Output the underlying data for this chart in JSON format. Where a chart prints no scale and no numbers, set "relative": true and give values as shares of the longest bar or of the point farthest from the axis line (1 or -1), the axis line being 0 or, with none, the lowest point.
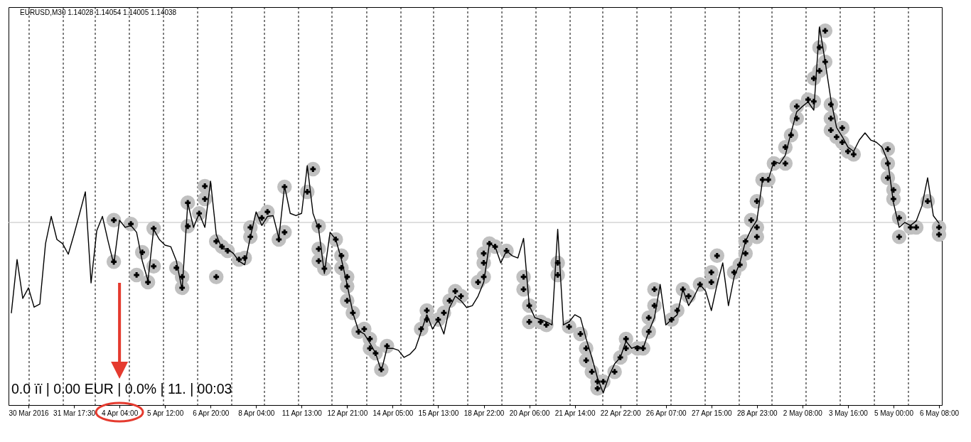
{
  "chart_data": {
    "type": "line",
    "relative": true,
    "tick_labels": "x",
    "title": "EURUSD,M30 1.14028 1.14054 1.14005 1.14038",
    "annotations": [
      "0.0 ïï | 0.00 EUR | 0.0% | 11. | 00:03"
    ],
    "categories": [
      null,
      null,
      null,
      "30 Mar 2016",
      null,
      null,
      null,
      null,
      null,
      null,
      null,
      "31 Mar 17:30",
      null,
      null,
      null,
      null,
      null,
      null,
      null,
      "4 Apr 04:00",
      null,
      null,
      null,
      null,
      null,
      null,
      null,
      "5 Apr 12:00",
      null,
      null,
      null,
      null,
      null,
      null,
      null,
      "6 Apr 20:00",
      null,
      null,
      null,
      null,
      null,
      null,
      null,
      "8 Apr 04:00",
      null,
      null,
      null,
      null,
      null,
      null,
      null,
      "11 Apr 13:00",
      null,
      null,
      null,
      null,
      null,
      null,
      null,
      "12 Apr 21:00",
      null,
      null,
      null,
      null,
      null,
      null,
      null,
      "14 Apr 05:00",
      null,
      null,
      null,
      null,
      null,
      null,
      null,
      "15 Apr 13:00",
      null,
      null,
      null,
      null,
      null,
      null,
      null,
      "18 Apr 22:00",
      null,
      null,
      null,
      null,
      null,
      null,
      null,
      "20 Apr 06:00",
      null,
      null,
      null,
      null,
      null,
      null,
      null,
      "21 Apr 14:00",
      null,
      null,
      null,
      null,
      null,
      null,
      null,
      "22 Apr 22:00",
      null,
      null,
      null,
      null,
      null,
      null,
      null,
      "26 Apr 07:00",
      null,
      null,
      null,
      null,
      null,
      null,
      null,
      "27 Apr 15:00",
      null,
      null,
      null,
      null,
      null,
      null,
      null,
      "28 Apr 23:00",
      null,
      null,
      null,
      null,
      null,
      null,
      null,
      "2 May 08:00",
      null,
      null,
      null,
      null,
      null,
      null,
      null,
      "3 May 16:00",
      null,
      null,
      null,
      null,
      null,
      null,
      null,
      "5 May 00:00",
      null,
      null,
      null,
      null,
      null,
      null,
      null,
      "6 May 08:00"
    ],
    "ref_lines": [
      {
        "axis": "y",
        "value": 0.483,
        "color": "#c0c0c0"
      }
    ],
    "series": [
      {
        "type": "scatter",
        "marker": "circle",
        "color": "#c0c0c0",
        "values": [
          null,
          null,
          null,
          null,
          null,
          null,
          null,
          null,
          null,
          null,
          null,
          null,
          null,
          null,
          null,
          null,
          null,
          null,
          0.489,
          null,
          null,
          0.479,
          0.344,
          0.404,
          0.325,
          0.467,
          null,
          null,
          null,
          0.363,
          0.31,
          0.473,
          null,
          0.507,
          0.579,
          null,
          0.433,
          0.419,
          0.408,
          null,
          0.385,
          0.389,
          0.445,
          null,
          0.495,
          0.511,
          null,
          0.438,
          0.457,
          null,
          null,
          null,
          0.564,
          0.624,
          0.473,
          0.361,
          null,
          0.438,
          0.395,
          0.339,
          0.244,
          0.194,
          0.201,
          0.175,
          0.137,
          0.094,
          0.156,
          null,
          null,
          null,
          null,
          null,
          0.201,
          0.25,
          null,
          0.226,
          0.244,
          0.276,
          0.301,
          0.288,
          null,
          null,
          0.325,
          0.339,
          0.427,
          0.419,
          null,
          0.408,
          null,
          null,
          0.339,
          0.263,
          null,
          0.22,
          0.212,
          null,
          0.376,
          null,
          0.207,
          null,
          0.188,
          0.15,
          0.088,
          0.062,
          0.062,
          null,
          0.088,
          0.126,
          0.15,
          null,
          0.15,
          0.15,
          0.231,
          0.306,
          null,
          null,
          0.226,
          0.25,
          0.306,
          0.288,
          null,
          0.319,
          null,
          0.325,
          0.395,
          null,
          null,
          0.351,
          0.371,
          0.401,
          0.489,
          0.445,
          0.596,
          0.596,
          0.639,
          null,
          0.639,
          0.714,
          0.758,
          null,
          0.808,
          0.803,
          0.884,
          0.99,
          0.795,
          0.709,
          0.695,
          0.671,
          0.663,
          null,
          null,
          null,
          null,
          null,
          0.677,
          0.569,
          0.495,
          null,
          0.47,
          0.47,
          null,
          0.539,
          null,
          0.47
        ]
      },
      {
        "type": "scatter",
        "marker": "circle",
        "color": "#c0c0c0",
        "values": [
          null,
          null,
          null,
          null,
          null,
          null,
          null,
          null,
          null,
          null,
          null,
          null,
          null,
          null,
          null,
          null,
          null,
          null,
          0.379,
          null,
          null,
          null,
          null,
          null,
          null,
          0.367,
          null,
          null,
          null,
          null,
          0.339,
          0.535,
          null,
          null,
          0.545,
          null,
          0.339,
          null,
          null,
          null,
          null,
          null,
          0.47,
          null,
          null,
          null,
          null,
          null,
          0.577,
          null,
          null,
          null,
          null,
          null,
          0.413,
          null,
          null,
          null,
          0.363,
          0.314,
          null,
          null,
          null,
          0.15,
          null,
          null,
          null,
          null,
          null,
          null,
          null,
          null,
          null,
          0.226,
          null,
          null,
          null,
          null,
          null,
          null,
          null,
          null,
          null,
          0.376,
          null,
          null,
          null,
          null,
          null,
          null,
          0.306,
          0.22,
          null,
          null,
          null,
          null,
          0.344,
          null,
          null,
          null,
          null,
          0.118,
          null,
          0.044,
          null,
          null,
          null,
          null,
          0.175,
          null,
          null,
          null,
          0.194,
          0.263,
          null,
          null,
          null,
          null,
          null,
          null,
          null,
          null,
          null,
          0.351,
          null,
          null,
          null,
          null,
          null,
          0.433,
          null,
          0.47,
          null,
          null,
          null,
          null,
          0.682,
          null,
          0.79,
          null,
          null,
          0.864,
          0.946,
          0.908,
          0.758,
          null,
          0.733,
          null,
          null,
          null,
          null,
          null,
          null,
          null,
          0.639,
          0.545,
          0.445,
          null,
          null,
          null,
          null,
          null,
          null,
          0.451
        ]
      },
      {
        "type": "scatter",
        "marker": "circle",
        "color": "#c0c0c0",
        "values": [
          null,
          null,
          null,
          null,
          null,
          null,
          null,
          null,
          null,
          null,
          null,
          null,
          null,
          null,
          null,
          null,
          null,
          null,
          null,
          null,
          null,
          null,
          null,
          null,
          null,
          null,
          null,
          null,
          null,
          null,
          null,
          null,
          null,
          null,
          null,
          null,
          null,
          null,
          null,
          null,
          null,
          null,
          null,
          null,
          null,
          null,
          null,
          null,
          null,
          null,
          null,
          null,
          null,
          null,
          0.381,
          null,
          null,
          null,
          null,
          0.276,
          null,
          null,
          null,
          null,
          null,
          null,
          null,
          null,
          null,
          null,
          null,
          null,
          null,
          null,
          null,
          null,
          null,
          null,
          null,
          null,
          null,
          null,
          null,
          0.401,
          null,
          null,
          null,
          null,
          null,
          null,
          null,
          null,
          null,
          null,
          null,
          null,
          null,
          null,
          null,
          null,
          null,
          null,
          null,
          null,
          null,
          null,
          null,
          null,
          null,
          null,
          null,
          null,
          null,
          null,
          null,
          null,
          null,
          null,
          null,
          null,
          null,
          null,
          null,
          null,
          null,
          null,
          null,
          null,
          null,
          null,
          null,
          0.539,
          null,
          null,
          null,
          null,
          null,
          null,
          null,
          null,
          null,
          null,
          null,
          null,
          0.727,
          null,
          null,
          null,
          null,
          null,
          null,
          null,
          null,
          null,
          0.601,
          null,
          null,
          null,
          null,
          null,
          null,
          null,
          null,
          null
        ]
      },
      {
        "marker": "none",
        "color": "#000000",
        "values": [
          0.244,
          0.385,
          0.282,
          0.31,
          0.259,
          0.267,
          0.427,
          0.499,
          0.438,
          0.427,
          0.399,
          0.451,
          0.507,
          0.564,
          0.323,
          0.461,
          0.499,
          0.433,
          0.372,
          0.489,
          0.47,
          0.475,
          0.457,
          0.381,
          0.329,
          0.465,
          0.438,
          0.423,
          0.419,
          0.381,
          0.305,
          0.535,
          0.47,
          0.507,
          0.47,
          0.592,
          0.451,
          0.413,
          0.413,
          0.401,
          0.381,
          0.371,
          0.445,
          0.511,
          0.475,
          0.499,
          0.501,
          0.441,
          0.579,
          0.507,
          0.501,
          0.507,
          0.633,
          0.507,
          0.465,
          0.348,
          0.457,
          0.438,
          0.385,
          0.319,
          0.244,
          0.197,
          0.188,
          0.164,
          0.137,
          0.09,
          0.15,
          0.15,
          0.145,
          0.126,
          0.134,
          0.15,
          0.194,
          0.239,
          0.201,
          0.226,
          0.188,
          0.258,
          0.288,
          0.276,
          0.258,
          0.263,
          0.288,
          0.325,
          0.427,
          0.419,
          0.376,
          0.408,
          0.395,
          0.389,
          0.441,
          0.263,
          0.231,
          0.226,
          0.22,
          0.212,
          0.465,
          0.212,
          0.22,
          0.239,
          0.231,
          0.175,
          0.126,
          0.071,
          0.032,
          0.076,
          0.109,
          0.126,
          0.169,
          0.15,
          0.156,
          0.15,
          0.194,
          0.231,
          0.319,
          0.212,
          0.226,
          0.239,
          0.306,
          0.263,
          0.288,
          0.319,
          0.301,
          0.25,
          0.319,
          0.376,
          0.263,
          0.339,
          0.376,
          0.433,
          0.465,
          0.489,
          0.596,
          0.596,
          0.645,
          0.639,
          0.661,
          0.72,
          0.776,
          0.79,
          0.802,
          0.78,
          1,
          0.908,
          0.808,
          0.734,
          0.71,
          0.682,
          0.671,
          0.701,
          0.72,
          0.701,
          0.695,
          0.682,
          0.645,
          0.535,
          0.47,
          0.483,
          0.475,
          0.487,
          0.527,
          0.601,
          0.501,
          0.481
        ]
      },
      {
        "type": "scatter",
        "marker": "cross",
        "color": "#000000",
        "values": [
          null,
          null,
          null,
          null,
          null,
          null,
          null,
          null,
          null,
          null,
          null,
          null,
          null,
          null,
          null,
          null,
          null,
          null,
          0.489,
          null,
          null,
          0.479,
          0.344,
          0.404,
          0.325,
          0.467,
          null,
          null,
          null,
          0.363,
          0.31,
          0.473,
          null,
          0.507,
          0.579,
          null,
          0.433,
          0.419,
          0.408,
          null,
          0.385,
          0.389,
          0.445,
          null,
          0.495,
          0.511,
          null,
          0.438,
          0.457,
          null,
          null,
          null,
          0.564,
          0.624,
          0.473,
          0.361,
          null,
          0.438,
          0.395,
          0.339,
          0.244,
          0.194,
          0.201,
          0.175,
          0.137,
          0.094,
          0.156,
          null,
          null,
          null,
          null,
          null,
          0.201,
          0.25,
          null,
          0.226,
          0.244,
          0.276,
          0.301,
          0.288,
          null,
          null,
          0.325,
          0.339,
          0.427,
          0.419,
          null,
          0.408,
          null,
          null,
          0.339,
          0.263,
          null,
          0.22,
          0.212,
          null,
          0.376,
          null,
          0.207,
          null,
          0.188,
          0.15,
          0.088,
          0.062,
          0.062,
          null,
          0.088,
          0.126,
          0.15,
          null,
          0.15,
          0.15,
          0.231,
          0.306,
          null,
          null,
          0.226,
          0.25,
          0.306,
          0.288,
          null,
          0.319,
          null,
          0.325,
          0.395,
          null,
          null,
          0.351,
          0.371,
          0.401,
          0.489,
          0.445,
          0.596,
          0.596,
          0.639,
          null,
          0.639,
          0.714,
          0.758,
          null,
          0.808,
          0.803,
          0.884,
          0.99,
          0.795,
          0.709,
          0.695,
          0.671,
          0.663,
          null,
          null,
          null,
          null,
          null,
          0.677,
          0.569,
          0.495,
          null,
          0.47,
          0.47,
          null,
          0.539,
          null,
          0.47
        ]
      },
      {
        "type": "scatter",
        "marker": "cross",
        "color": "#000000",
        "values": [
          null,
          null,
          null,
          null,
          null,
          null,
          null,
          null,
          null,
          null,
          null,
          null,
          null,
          null,
          null,
          null,
          null,
          null,
          0.379,
          null,
          null,
          null,
          null,
          null,
          null,
          0.367,
          null,
          null,
          null,
          null,
          0.339,
          0.535,
          null,
          null,
          0.545,
          null,
          0.339,
          null,
          null,
          null,
          null,
          null,
          0.47,
          null,
          null,
          null,
          null,
          null,
          0.577,
          null,
          null,
          null,
          null,
          null,
          0.413,
          null,
          null,
          null,
          0.363,
          0.314,
          null,
          null,
          null,
          0.15,
          null,
          null,
          null,
          null,
          null,
          null,
          null,
          null,
          null,
          0.226,
          null,
          null,
          null,
          null,
          null,
          null,
          null,
          null,
          null,
          0.376,
          null,
          null,
          null,
          null,
          null,
          null,
          0.306,
          0.22,
          null,
          null,
          null,
          null,
          0.344,
          null,
          null,
          null,
          null,
          0.118,
          null,
          0.044,
          null,
          null,
          null,
          null,
          0.175,
          null,
          null,
          null,
          0.194,
          0.263,
          null,
          null,
          null,
          null,
          null,
          null,
          null,
          null,
          null,
          0.351,
          null,
          null,
          null,
          null,
          null,
          0.433,
          null,
          0.47,
          null,
          null,
          null,
          null,
          0.682,
          null,
          0.79,
          null,
          null,
          0.864,
          0.946,
          0.908,
          0.758,
          null,
          0.733,
          null,
          null,
          null,
          null,
          null,
          null,
          null,
          0.639,
          0.545,
          0.445,
          null,
          null,
          null,
          null,
          null,
          null,
          0.451
        ]
      },
      {
        "type": "scatter",
        "marker": "cross",
        "color": "#000000",
        "values": [
          null,
          null,
          null,
          null,
          null,
          null,
          null,
          null,
          null,
          null,
          null,
          null,
          null,
          null,
          null,
          null,
          null,
          null,
          null,
          null,
          null,
          null,
          null,
          null,
          null,
          null,
          null,
          null,
          null,
          null,
          null,
          null,
          null,
          null,
          null,
          null,
          null,
          null,
          null,
          null,
          null,
          null,
          null,
          null,
          null,
          null,
          null,
          null,
          null,
          null,
          null,
          null,
          null,
          null,
          0.381,
          null,
          null,
          null,
          null,
          0.276,
          null,
          null,
          null,
          null,
          null,
          null,
          null,
          null,
          null,
          null,
          null,
          null,
          null,
          null,
          null,
          null,
          null,
          null,
          null,
          null,
          null,
          null,
          null,
          0.401,
          null,
          null,
          null,
          null,
          null,
          null,
          null,
          null,
          null,
          null,
          null,
          null,
          null,
          null,
          null,
          null,
          null,
          null,
          null,
          null,
          null,
          null,
          null,
          null,
          null,
          null,
          null,
          null,
          null,
          null,
          null,
          null,
          null,
          null,
          null,
          null,
          null,
          null,
          null,
          null,
          null,
          null,
          null,
          null,
          null,
          null,
          null,
          0.539,
          null,
          null,
          null,
          null,
          null,
          null,
          null,
          null,
          null,
          null,
          null,
          null,
          0.727,
          null,
          null,
          null,
          null,
          null,
          null,
          null,
          null,
          null,
          0.601,
          null,
          null,
          null,
          null,
          null,
          null,
          null,
          null,
          null
        ]
      }
    ]
  }
}
